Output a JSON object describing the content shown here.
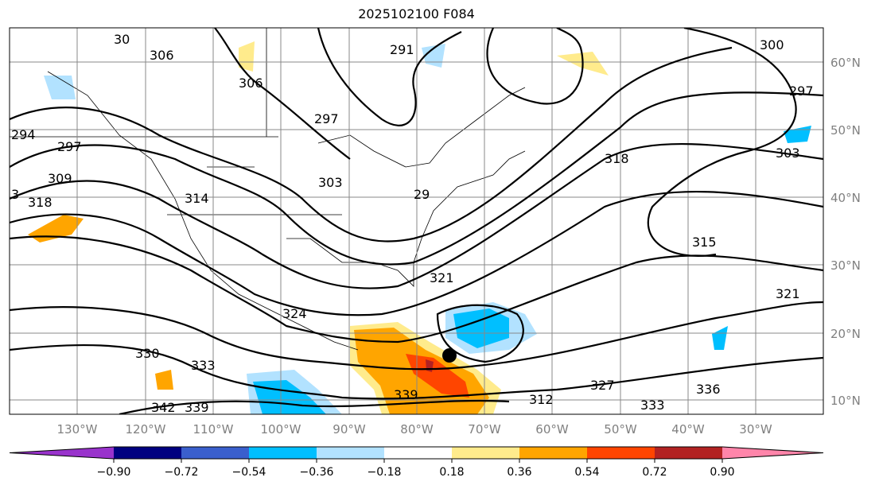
{
  "title": "2025102100 F084",
  "lon_labels": [
    "130°W",
    "120°W",
    "110°W",
    "100°W",
    "90°W",
    "80°W",
    "70°W",
    "60°W",
    "50°W",
    "40°W",
    "30°W"
  ],
  "lat_labels": [
    "60°N",
    "50°N",
    "40°N",
    "30°N",
    "20°N",
    "10°N"
  ],
  "contour_labels": [
    "306",
    "306",
    "30",
    "291",
    "297",
    "294",
    "297",
    "309",
    "318",
    "3",
    "314",
    "303",
    "29",
    "300",
    "297",
    "303",
    "318",
    "315",
    "321",
    "321",
    "324",
    "327",
    "330",
    "333",
    "333",
    "336",
    "342",
    "339",
    "339",
    "312"
  ],
  "colorbar": {
    "ticks": [
      "−0.90",
      "−0.72",
      "−0.54",
      "−0.36",
      "−0.18",
      "0.18",
      "0.36",
      "0.54",
      "0.72",
      "0.90"
    ],
    "colors": [
      "#9933cc",
      "#000080",
      "#3a5fcd",
      "#00bfff",
      "#b2e2ff",
      "#ffffff",
      "#ffeb8c",
      "#ffa500",
      "#ff4500",
      "#b22222",
      "#ff85aa"
    ]
  },
  "marker_color": "#000000"
}
